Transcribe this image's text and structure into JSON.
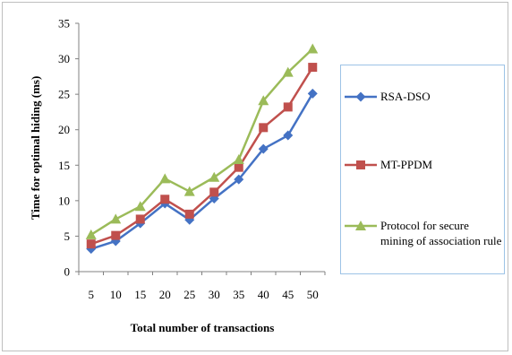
{
  "chart_data": {
    "type": "line",
    "title": "",
    "xlabel": "Total number of transactions",
    "ylabel": "Time for optimal hiding (ms)",
    "x": [
      5,
      10,
      15,
      20,
      25,
      30,
      35,
      40,
      45,
      50
    ],
    "xticks": [
      "5",
      "10",
      "15",
      "20",
      "25",
      "30",
      "35",
      "40",
      "45",
      "50"
    ],
    "yticks": [
      "0",
      "5",
      "10",
      "15",
      "20",
      "25",
      "30",
      "35"
    ],
    "ylim": [
      0,
      35
    ],
    "grid": false,
    "legend": "right",
    "series": [
      {
        "name": "RSA-DSO",
        "color": "#4472c4",
        "marker": "diamond",
        "values": [
          3.2,
          4.3,
          6.8,
          9.6,
          7.3,
          10.3,
          13.0,
          17.3,
          19.2,
          25.1
        ]
      },
      {
        "name": "MT-PPDM",
        "color": "#c0504d",
        "marker": "square",
        "values": [
          3.9,
          5.1,
          7.4,
          10.2,
          8.1,
          11.2,
          14.7,
          20.3,
          23.2,
          28.8
        ]
      },
      {
        "name": "Protocol for secure mining of association rule",
        "color": "#9bbb59",
        "marker": "triangle",
        "values": [
          5.2,
          7.4,
          9.2,
          13.1,
          11.3,
          13.3,
          15.8,
          24.1,
          28.1,
          31.4
        ]
      }
    ]
  }
}
